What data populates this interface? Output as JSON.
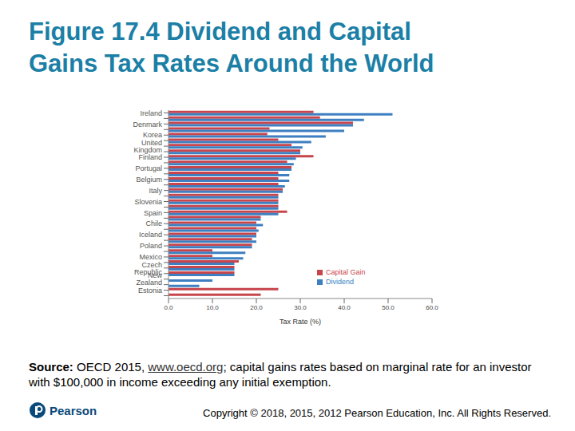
{
  "title": [
    "Figure 17.4 Dividend and Capital",
    "Gains Tax Rates Around the World"
  ],
  "chart_data": {
    "type": "bar",
    "orientation": "horizontal",
    "x_label": "Tax Rate (%)",
    "categories": [
      "Ireland",
      null,
      "Denmark",
      null,
      "Korea",
      null,
      "United Kingdom",
      null,
      "Finland",
      null,
      "Portugal",
      null,
      "Belgium",
      null,
      "Italy",
      null,
      "Slovenia",
      null,
      "Spain",
      null,
      "Chile",
      null,
      "Iceland",
      null,
      "Poland",
      null,
      "Mexico",
      null,
      "Czech Republic",
      null,
      "New Zealand",
      null,
      "Estonia",
      null
    ],
    "series": [
      {
        "name": "Capital Gain",
        "color": "#c8454c",
        "values": [
          33,
          34.5,
          42,
          23,
          22.5,
          25,
          28,
          30,
          33,
          27,
          28,
          25,
          25,
          25,
          26,
          25,
          25,
          25,
          27,
          21,
          20,
          20,
          20,
          19,
          19,
          10,
          10,
          16,
          15,
          15,
          0,
          0,
          25,
          21
        ]
      },
      {
        "name": "Dividend",
        "color": "#3d7fc1",
        "values": [
          51,
          44.5,
          42,
          40,
          35.8,
          32.5,
          30.5,
          30,
          29,
          28.5,
          28,
          27.5,
          27.5,
          26.5,
          26,
          25,
          25,
          25,
          25,
          21,
          21.5,
          20.5,
          20,
          20,
          19,
          17.5,
          17,
          15,
          15,
          15,
          10,
          7,
          0,
          0
        ]
      }
    ],
    "xlim": [
      0,
      60
    ],
    "xticks": [
      {
        "value": 0,
        "label": "0.0"
      },
      {
        "value": 10,
        "label": "10.0"
      },
      {
        "value": 20,
        "label": "20.0"
      },
      {
        "value": 30,
        "label": "30.0"
      },
      {
        "value": 40,
        "label": "40.0"
      },
      {
        "value": 50,
        "label": "50.0"
      },
      {
        "value": 60,
        "label": "60.0"
      }
    ],
    "grid": false,
    "legend": "lower right"
  },
  "source": {
    "label": "Source:",
    "text": "OECD 2015,",
    "link": "www.oecd.org",
    "rest": "; capital gains rates based on marginal rate for an investor with $100,000 in income exceeding any initial exemption."
  },
  "publisher": "Pearson",
  "copyright": "Copyright © 2018, 2015, 2012 Pearson Education, Inc. All Rights Reserved."
}
